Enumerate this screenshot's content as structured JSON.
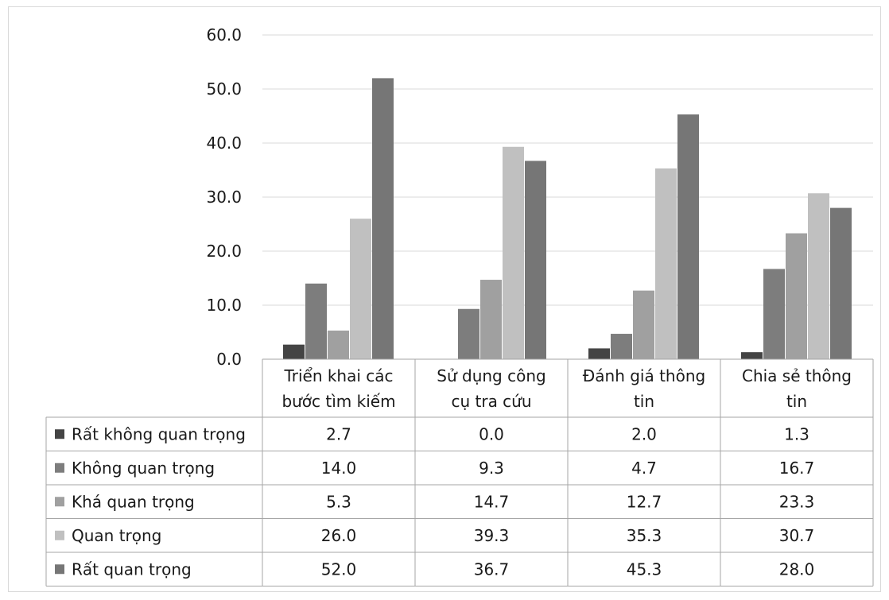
{
  "chart_data": {
    "type": "bar",
    "title": "",
    "xlabel": "",
    "ylabel": "",
    "ylim": [
      0,
      60
    ],
    "yticks": [
      "0.0",
      "10.0",
      "20.0",
      "30.0",
      "40.0",
      "50.0",
      "60.0"
    ],
    "grid": true,
    "legend_placement": "data-table-left",
    "categories": [
      [
        "Triển khai các",
        "bước tìm kiếm"
      ],
      [
        "Sử dụng công",
        "cụ tra cứu"
      ],
      [
        "Đánh giá thông",
        "tin"
      ],
      [
        "Chia sẻ thông",
        "tin"
      ]
    ],
    "series": [
      {
        "name": "Rất không quan trọng",
        "color": "#444444",
        "values": [
          2.7,
          0.0,
          2.0,
          1.3
        ],
        "labels": [
          "2.7",
          "0.0",
          "2.0",
          "1.3"
        ]
      },
      {
        "name": "Không quan trọng",
        "color": "#7d7d7d",
        "values": [
          14.0,
          9.3,
          4.7,
          16.7
        ],
        "labels": [
          "14.0",
          "9.3",
          "4.7",
          "16.7"
        ]
      },
      {
        "name": "Khá quan trọng",
        "color": "#a0a0a0",
        "values": [
          5.3,
          14.7,
          12.7,
          23.3
        ],
        "labels": [
          "5.3",
          "14.7",
          "12.7",
          "23.3"
        ]
      },
      {
        "name": "Quan trọng",
        "color": "#c0c0c0",
        "values": [
          26.0,
          39.3,
          35.3,
          30.7
        ],
        "labels": [
          "26.0",
          "39.3",
          "35.3",
          "30.7"
        ]
      },
      {
        "name": "Rất quan trọng",
        "color": "#767676",
        "values": [
          52.0,
          36.7,
          45.3,
          28.0
        ],
        "labels": [
          "52.0",
          "36.7",
          "45.3",
          "28.0"
        ]
      }
    ]
  }
}
